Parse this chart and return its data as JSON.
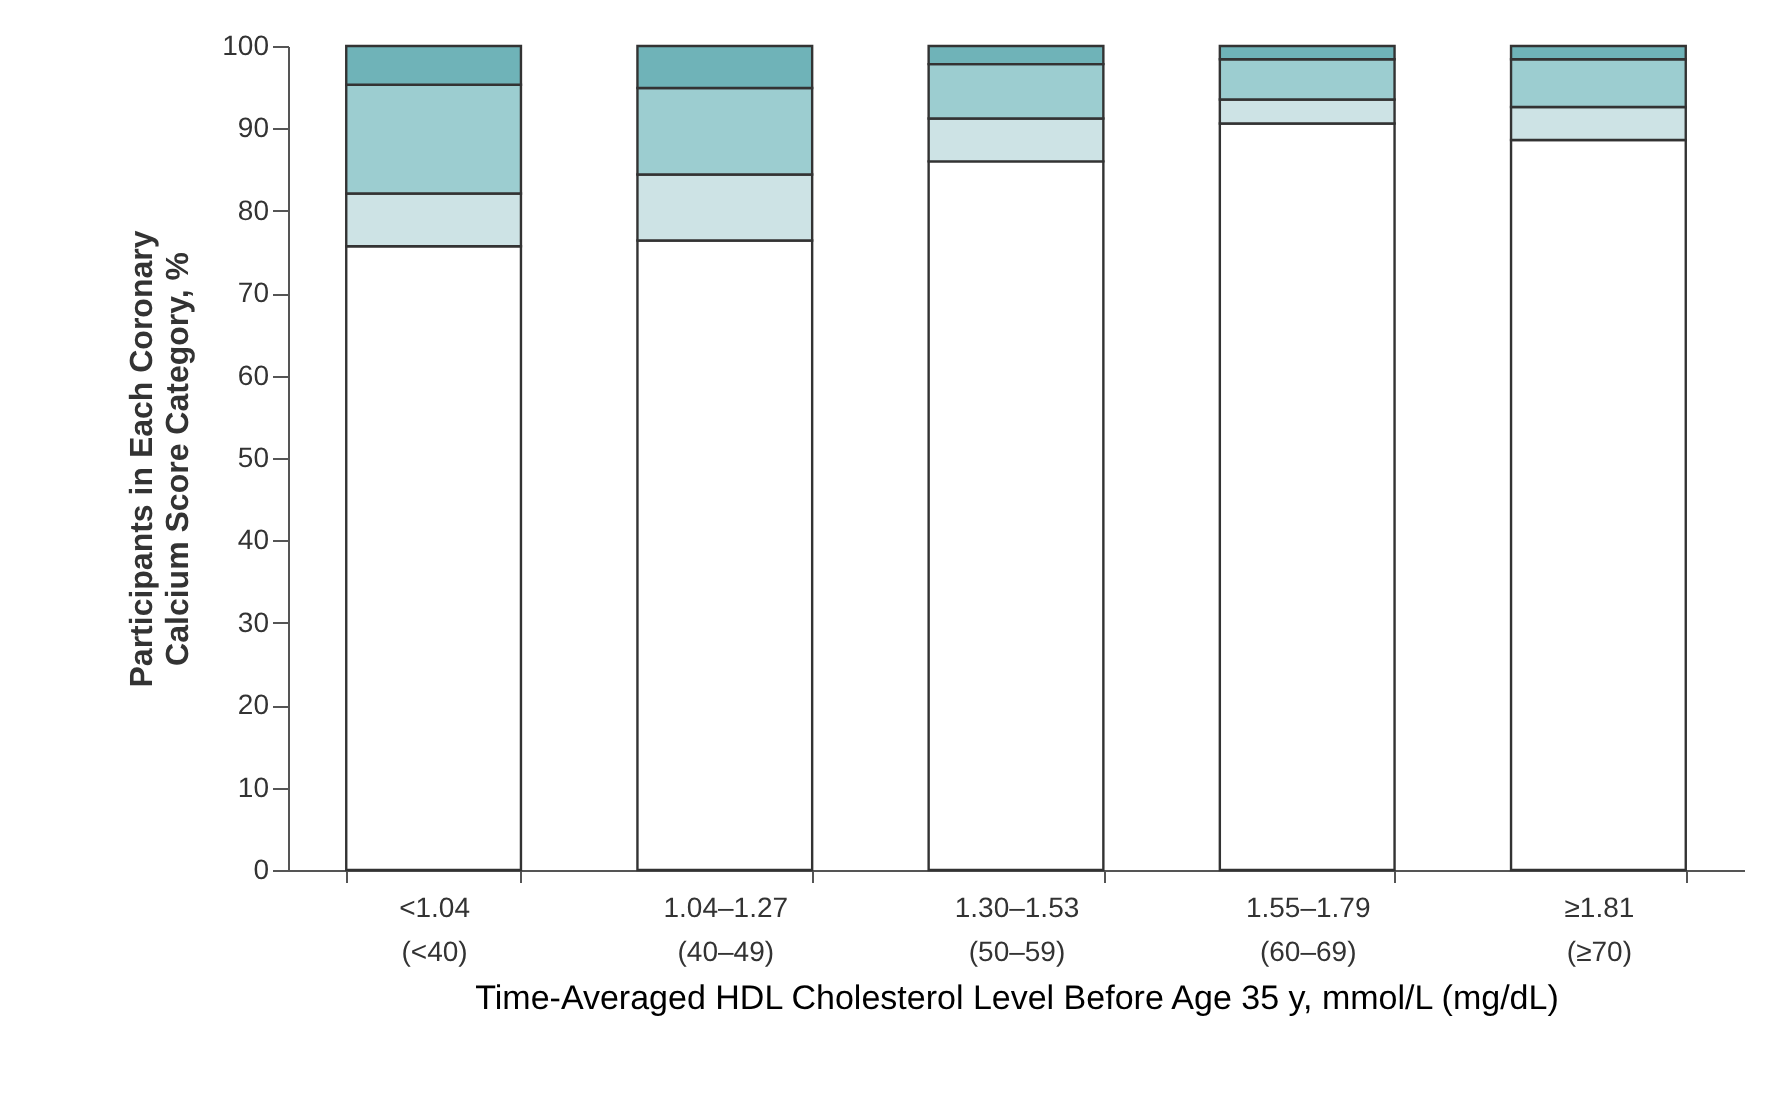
{
  "chart_data": {
    "type": "bar",
    "stacked": true,
    "categories": [
      "<1.04\n(<40)",
      "1.04–1.27\n(40–49)",
      "1.30–1.53\n(50–59)",
      "1.55–1.79\n(60–69)",
      "≥1.81\n(≥70)"
    ],
    "series": [
      {
        "color": "#ffffff",
        "values": [
          75.7,
          76.4,
          86.0,
          90.6,
          88.6
        ]
      },
      {
        "color": "#cde3e5",
        "values": [
          6.4,
          8.0,
          5.2,
          2.9,
          4.0
        ]
      },
      {
        "color": "#9ccdd0",
        "values": [
          13.2,
          10.5,
          6.6,
          4.9,
          5.8
        ]
      },
      {
        "color": "#6fb3b8",
        "values": [
          4.7,
          5.1,
          2.2,
          1.6,
          1.6
        ]
      }
    ],
    "ylim": [
      0,
      100
    ],
    "yticks": [
      0,
      10,
      20,
      30,
      40,
      50,
      60,
      70,
      80,
      90,
      100
    ],
    "grid": false,
    "legend": false,
    "xlabel": "Time-Averaged HDL Cholesterol Level Before Age 35 y, mmol/L (mg/dL)",
    "ylabel": "Participants in Each Coronary\nCalcium Score Category, %"
  }
}
